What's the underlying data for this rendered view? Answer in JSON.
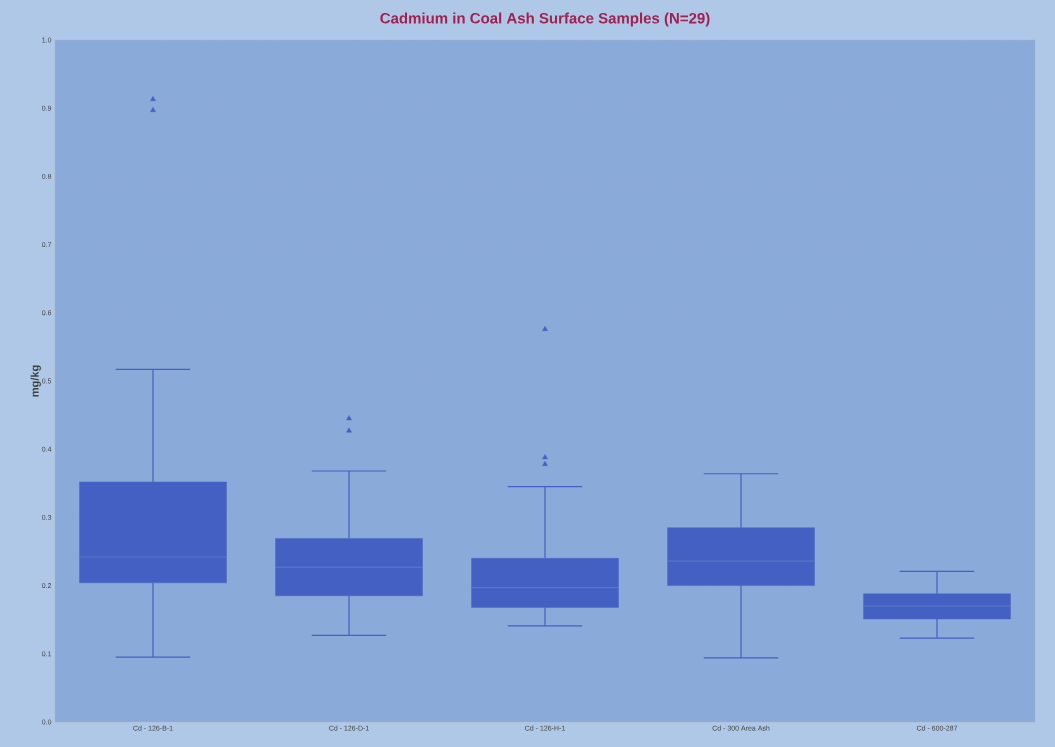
{
  "chart_data": {
    "type": "box",
    "title": "Cadmium in Coal Ash Surface Samples (N=29)",
    "ylabel": "mg/kg",
    "categories": [
      "Cd - 126-B-1",
      "Cd - 126-D-1",
      "Cd - 126-H-1",
      "Cd - 300 Area Ash",
      "Cd - 600-287"
    ],
    "boxes": [
      {
        "low": 0.095,
        "q1": 0.204,
        "median": 0.242,
        "q3": 0.352,
        "high": 0.517,
        "outliers": [
          0.913,
          0.897
        ]
      },
      {
        "low": 0.127,
        "q1": 0.185,
        "median": 0.227,
        "q3": 0.269,
        "high": 0.368,
        "outliers": [
          0.445,
          0.427
        ]
      },
      {
        "low": 0.141,
        "q1": 0.168,
        "median": 0.197,
        "q3": 0.24,
        "high": 0.345,
        "outliers": [
          0.576,
          0.388,
          0.378
        ]
      },
      {
        "low": 0.094,
        "q1": 0.2,
        "median": 0.236,
        "q3": 0.285,
        "high": 0.364
      },
      {
        "low": 0.123,
        "q1": 0.151,
        "median": 0.17,
        "q3": 0.188,
        "high": 0.221
      }
    ],
    "color": "#4360c2",
    "marker": "triangle",
    "grid": "y",
    "ylim": [
      0,
      1
    ],
    "yticks": [
      {
        "value": 0,
        "label": "0.0"
      },
      0.1,
      0.2,
      0.3,
      0.4,
      0.5,
      0.6,
      0.7,
      0.8,
      0.9,
      {
        "value": 1,
        "label": "1.0"
      }
    ]
  }
}
